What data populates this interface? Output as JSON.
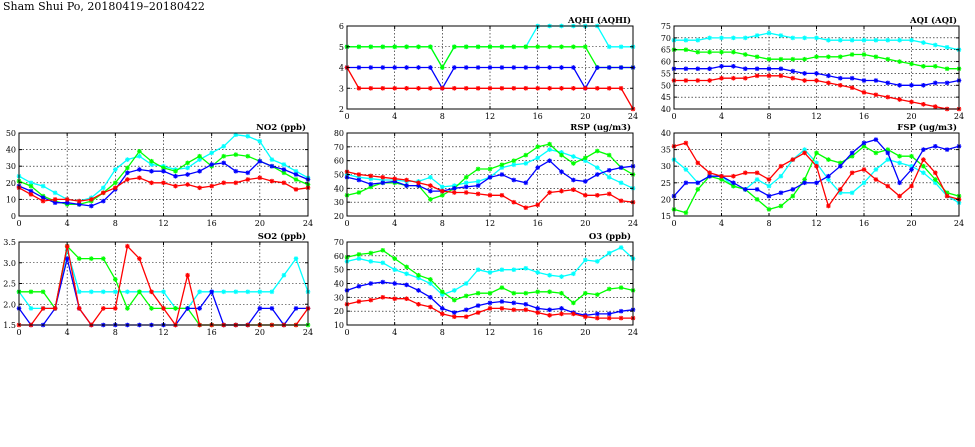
{
  "title": "Sham Shui Po, 20180419–20180422",
  "colors": {
    "s1": "#00ffff",
    "s2": "#00ff00",
    "s3": "#0000ff",
    "s4": "#ff0000",
    "grid": "#000000"
  },
  "chart_data": [
    {
      "id": "aqhi",
      "type": "line",
      "title": "AQHI (AQHI)",
      "xlim": [
        0,
        24
      ],
      "xticks": [
        0,
        4,
        8,
        12,
        16,
        20,
        24
      ],
      "ylim": [
        2,
        6
      ],
      "yticks": [
        2,
        3,
        4,
        5,
        6
      ],
      "ytick_labels": [
        "2",
        "3",
        "4",
        "5",
        "6"
      ],
      "grid": true,
      "series": [
        {
          "color": "#00ffff",
          "values": [
            5,
            5,
            5,
            5,
            5,
            5,
            5,
            5,
            4,
            5,
            5,
            5,
            5,
            5,
            5,
            5,
            6,
            6,
            6,
            6,
            6,
            6,
            5,
            5,
            5
          ]
        },
        {
          "color": "#00ff00",
          "values": [
            5,
            5,
            5,
            5,
            5,
            5,
            5,
            5,
            4,
            5,
            5,
            5,
            5,
            5,
            5,
            5,
            5,
            5,
            5,
            5,
            5,
            4,
            4,
            4,
            4
          ]
        },
        {
          "color": "#0000ff",
          "values": [
            4,
            4,
            4,
            4,
            4,
            4,
            4,
            4,
            3,
            4,
            4,
            4,
            4,
            4,
            4,
            4,
            4,
            4,
            4,
            4,
            3,
            4,
            4,
            4,
            4
          ]
        },
        {
          "color": "#ff0000",
          "values": [
            4,
            3,
            3,
            3,
            3,
            3,
            3,
            3,
            3,
            3,
            3,
            3,
            3,
            3,
            3,
            3,
            3,
            3,
            3,
            3,
            3,
            3,
            3,
            3,
            2
          ]
        }
      ]
    },
    {
      "id": "aqi",
      "type": "line",
      "title": "AQI (AQI)",
      "xlim": [
        0,
        24
      ],
      "xticks": [
        0,
        4,
        8,
        12,
        16,
        20,
        24
      ],
      "ylim": [
        40,
        75
      ],
      "yticks": [
        40,
        45,
        50,
        55,
        60,
        65,
        70,
        75
      ],
      "ytick_labels": [
        "40",
        "45",
        "50",
        "55",
        "60",
        "65",
        "70",
        "75"
      ],
      "grid": true,
      "series": [
        {
          "color": "#00ffff",
          "values": [
            69,
            69,
            69,
            70,
            70,
            70,
            70,
            71,
            72,
            71,
            70,
            70,
            70,
            69,
            69,
            69,
            69,
            69,
            69,
            69,
            69,
            68,
            67,
            66,
            65
          ]
        },
        {
          "color": "#00ff00",
          "values": [
            65,
            65,
            64,
            64,
            64,
            64,
            63,
            62,
            61,
            61,
            61,
            61,
            62,
            62,
            62,
            63,
            63,
            62,
            61,
            60,
            59,
            58,
            58,
            57,
            57
          ]
        },
        {
          "color": "#0000ff",
          "values": [
            57,
            57,
            57,
            57,
            58,
            58,
            57,
            57,
            57,
            57,
            56,
            55,
            55,
            54,
            53,
            53,
            52,
            52,
            51,
            50,
            50,
            50,
            51,
            51,
            52
          ]
        },
        {
          "color": "#ff0000",
          "values": [
            52,
            52,
            52,
            52,
            53,
            53,
            53,
            54,
            54,
            54,
            53,
            52,
            52,
            51,
            50,
            49,
            47,
            46,
            45,
            44,
            43,
            42,
            41,
            40,
            40
          ]
        }
      ]
    },
    {
      "id": "no2",
      "type": "line",
      "title": "NO2 (ppb)",
      "xlim": [
        0,
        24
      ],
      "xticks": [
        0,
        4,
        8,
        12,
        16,
        20,
        24
      ],
      "ylim": [
        0,
        50
      ],
      "yticks": [
        0,
        10,
        20,
        30,
        40,
        50
      ],
      "ytick_labels": [
        "0",
        "10",
        "20",
        "30",
        "40",
        "50"
      ],
      "grid": true,
      "series": [
        {
          "color": "#00ffff",
          "values": [
            24,
            20,
            18,
            14,
            10,
            9,
            11,
            17,
            28,
            34,
            36,
            31,
            30,
            28,
            29,
            34,
            38,
            42,
            49,
            48,
            45,
            34,
            31,
            27,
            23
          ]
        },
        {
          "color": "#00ff00",
          "values": [
            21,
            18,
            12,
            9,
            7,
            7,
            9,
            14,
            20,
            29,
            39,
            33,
            29,
            27,
            32,
            36,
            30,
            36,
            37,
            36,
            33,
            30,
            26,
            22,
            19
          ]
        },
        {
          "color": "#0000ff",
          "values": [
            18,
            15,
            11,
            8,
            8,
            7,
            6,
            9,
            16,
            26,
            28,
            27,
            27,
            24,
            25,
            27,
            31,
            32,
            27,
            26,
            33,
            30,
            28,
            25,
            22
          ]
        },
        {
          "color": "#ff0000",
          "values": [
            17,
            13,
            9,
            10,
            10,
            9,
            10,
            14,
            17,
            22,
            23,
            20,
            20,
            18,
            19,
            17,
            18,
            20,
            20,
            22,
            23,
            21,
            20,
            16,
            17
          ]
        }
      ]
    },
    {
      "id": "rsp",
      "type": "line",
      "title": "RSP (ug/m3)",
      "xlim": [
        0,
        24
      ],
      "xticks": [
        0,
        4,
        8,
        12,
        16,
        20,
        24
      ],
      "ylim": [
        20,
        80
      ],
      "yticks": [
        20,
        30,
        40,
        50,
        60,
        70,
        80
      ],
      "ytick_labels": [
        "20",
        "30",
        "40",
        "50",
        "60",
        "70",
        "80"
      ],
      "grid": true,
      "series": [
        {
          "color": "#00ffff",
          "values": [
            50,
            48,
            47,
            46,
            46,
            45,
            45,
            48,
            41,
            42,
            44,
            45,
            48,
            55,
            57,
            58,
            62,
            68,
            66,
            63,
            60,
            55,
            48,
            44,
            40
          ]
        },
        {
          "color": "#00ff00",
          "values": [
            35,
            37,
            41,
            44,
            44,
            42,
            42,
            32,
            35,
            40,
            48,
            54,
            54,
            57,
            60,
            64,
            70,
            72,
            64,
            58,
            62,
            67,
            64,
            55,
            50
          ]
        },
        {
          "color": "#0000ff",
          "values": [
            48,
            46,
            43,
            44,
            45,
            42,
            42,
            38,
            38,
            40,
            41,
            42,
            48,
            50,
            46,
            44,
            55,
            60,
            52,
            46,
            45,
            50,
            53,
            55,
            56
          ]
        },
        {
          "color": "#ff0000",
          "values": [
            52,
            50,
            49,
            48,
            47,
            46,
            44,
            42,
            38,
            37,
            37,
            36,
            35,
            35,
            30,
            26,
            28,
            37,
            38,
            39,
            35,
            35,
            36,
            31,
            30
          ]
        }
      ]
    },
    {
      "id": "fsp",
      "type": "line",
      "title": "FSP (ug/m3)",
      "xlim": [
        0,
        24
      ],
      "xticks": [
        0,
        4,
        8,
        12,
        16,
        20,
        24
      ],
      "ylim": [
        15,
        40
      ],
      "yticks": [
        15,
        20,
        25,
        30,
        35,
        40
      ],
      "ytick_labels": [
        "15",
        "20",
        "25",
        "30",
        "35",
        "40"
      ],
      "grid": true,
      "series": [
        {
          "color": "#00ffff",
          "values": [
            32,
            29,
            25,
            27,
            27,
            24,
            23,
            26,
            24,
            27,
            32,
            35,
            31,
            26,
            22,
            22,
            25,
            29,
            32,
            31,
            30,
            28,
            25,
            21,
            19
          ]
        },
        {
          "color": "#00ff00",
          "values": [
            17,
            16,
            23,
            27,
            26,
            24,
            23,
            20,
            17,
            18,
            21,
            26,
            34,
            32,
            31,
            33,
            36,
            34,
            35,
            33,
            33,
            30,
            26,
            22,
            21
          ]
        },
        {
          "color": "#0000ff",
          "values": [
            21,
            25,
            25,
            27,
            27,
            25,
            23,
            23,
            21,
            22,
            23,
            25,
            25,
            27,
            30,
            34,
            37,
            38,
            34,
            25,
            29,
            35,
            36,
            35,
            36
          ]
        },
        {
          "color": "#ff0000",
          "values": [
            36,
            37,
            31,
            28,
            27,
            27,
            28,
            28,
            26,
            30,
            32,
            34,
            30,
            18,
            23,
            28,
            29,
            26,
            24,
            21,
            24,
            32,
            28,
            21,
            20
          ]
        }
      ]
    },
    {
      "id": "so2",
      "type": "line",
      "title": "SO2 (ppb)",
      "xlim": [
        0,
        24
      ],
      "xticks": [
        0,
        4,
        8,
        12,
        16,
        20,
        24
      ],
      "ylim": [
        1.5,
        3.5
      ],
      "yticks": [
        1.5,
        2.0,
        2.5,
        3.0,
        3.5
      ],
      "ytick_labels": [
        "1.5",
        "2.0",
        "2.5",
        "3.0",
        "3.5"
      ],
      "grid": true,
      "series": [
        {
          "color": "#00ffff",
          "values": [
            2.3,
            1.9,
            1.9,
            1.9,
            3.3,
            2.3,
            2.3,
            2.3,
            2.3,
            2.3,
            2.3,
            2.3,
            2.3,
            1.9,
            1.9,
            2.3,
            2.3,
            2.3,
            2.3,
            2.3,
            2.3,
            2.3,
            2.7,
            3.1,
            2.3
          ]
        },
        {
          "color": "#00ff00",
          "values": [
            2.3,
            2.3,
            2.3,
            1.9,
            3.4,
            3.1,
            3.1,
            3.1,
            2.6,
            1.9,
            2.3,
            1.9,
            1.9,
            1.9,
            1.9,
            1.5,
            1.5,
            1.5,
            1.5,
            1.5,
            1.5,
            1.5,
            1.5,
            1.5,
            1.5
          ]
        },
        {
          "color": "#0000ff",
          "values": [
            1.9,
            1.5,
            1.5,
            1.9,
            3.1,
            1.9,
            1.5,
            1.5,
            1.5,
            1.5,
            1.5,
            1.5,
            1.5,
            1.5,
            1.9,
            1.9,
            2.3,
            1.5,
            1.5,
            1.5,
            1.9,
            1.9,
            1.5,
            1.9,
            1.9
          ]
        },
        {
          "color": "#ff0000",
          "values": [
            1.5,
            1.5,
            1.9,
            1.9,
            3.4,
            1.9,
            1.5,
            1.9,
            1.9,
            3.4,
            3.1,
            2.3,
            1.9,
            1.5,
            2.7,
            1.5,
            1.5,
            1.5,
            1.5,
            1.5,
            1.5,
            1.5,
            1.5,
            1.5,
            1.9
          ]
        }
      ]
    },
    {
      "id": "o3",
      "type": "line",
      "title": "O3 (ppb)",
      "xlim": [
        0,
        24
      ],
      "xticks": [
        0,
        4,
        8,
        12,
        16,
        20,
        24
      ],
      "ylim": [
        10,
        70
      ],
      "yticks": [
        10,
        20,
        30,
        40,
        50,
        60,
        70
      ],
      "ytick_labels": [
        "10",
        "20",
        "30",
        "40",
        "50",
        "60",
        "70"
      ],
      "grid": true,
      "series": [
        {
          "color": "#00ffff",
          "values": [
            56,
            58,
            56,
            55,
            50,
            47,
            44,
            40,
            32,
            35,
            40,
            50,
            48,
            50,
            50,
            51,
            48,
            46,
            45,
            47,
            57,
            56,
            62,
            66,
            58
          ]
        },
        {
          "color": "#00ff00",
          "values": [
            59,
            61,
            62,
            64,
            58,
            52,
            46,
            43,
            34,
            28,
            31,
            33,
            33,
            37,
            33,
            33,
            34,
            34,
            33,
            26,
            33,
            32,
            36,
            37,
            35
          ]
        },
        {
          "color": "#0000ff",
          "values": [
            35,
            38,
            40,
            41,
            40,
            39,
            35,
            30,
            22,
            19,
            21,
            24,
            26,
            27,
            26,
            25,
            22,
            21,
            22,
            19,
            17,
            18,
            18,
            20,
            21
          ]
        },
        {
          "color": "#ff0000",
          "values": [
            25,
            27,
            28,
            30,
            29,
            29,
            25,
            23,
            18,
            16,
            16,
            19,
            22,
            22,
            21,
            21,
            19,
            17,
            18,
            18,
            16,
            15,
            15,
            15,
            15
          ]
        }
      ]
    }
  ]
}
